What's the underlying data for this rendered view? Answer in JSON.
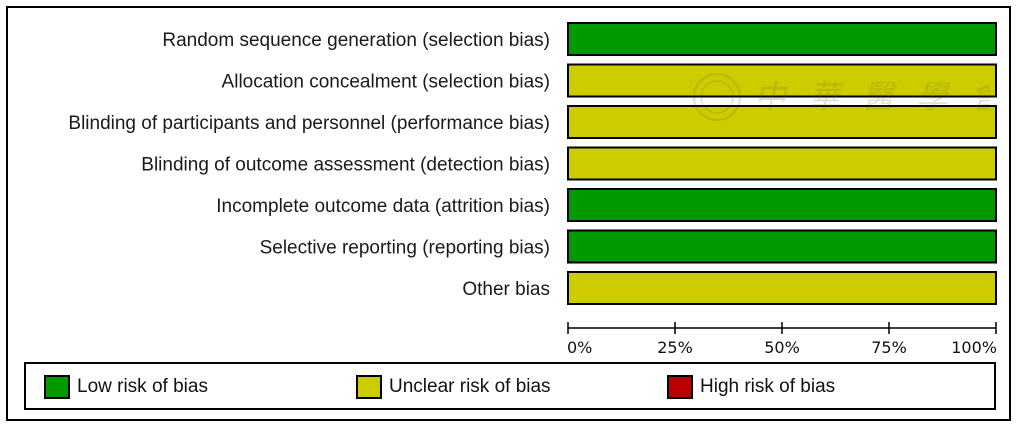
{
  "chart_data": {
    "type": "bar",
    "orientation": "horizontal",
    "stacked": true,
    "categories": [
      "Random sequence generation (selection bias)",
      "Allocation concealment (selection bias)",
      "Blinding of participants and personnel (performance bias)",
      "Blinding of outcome assessment (detection bias)",
      "Incomplete outcome data (attrition bias)",
      "Selective reporting (reporting bias)",
      "Other bias"
    ],
    "series": [
      {
        "name": "Low risk of bias",
        "color": "#009900",
        "values": [
          100,
          0,
          0,
          0,
          100,
          100,
          0
        ]
      },
      {
        "name": "Unclear risk of bias",
        "color": "#cccc00",
        "values": [
          0,
          100,
          100,
          100,
          0,
          0,
          100
        ]
      },
      {
        "name": "High risk of bias",
        "color": "#bb0000",
        "values": [
          0,
          0,
          0,
          0,
          0,
          0,
          0
        ]
      }
    ],
    "xlim": [
      0,
      100
    ],
    "xticks": [
      "0%",
      "25%",
      "50%",
      "75%",
      "100%"
    ],
    "grid": false,
    "legend_position": "bottom"
  },
  "watermark": {
    "text": "中華醫學會"
  }
}
